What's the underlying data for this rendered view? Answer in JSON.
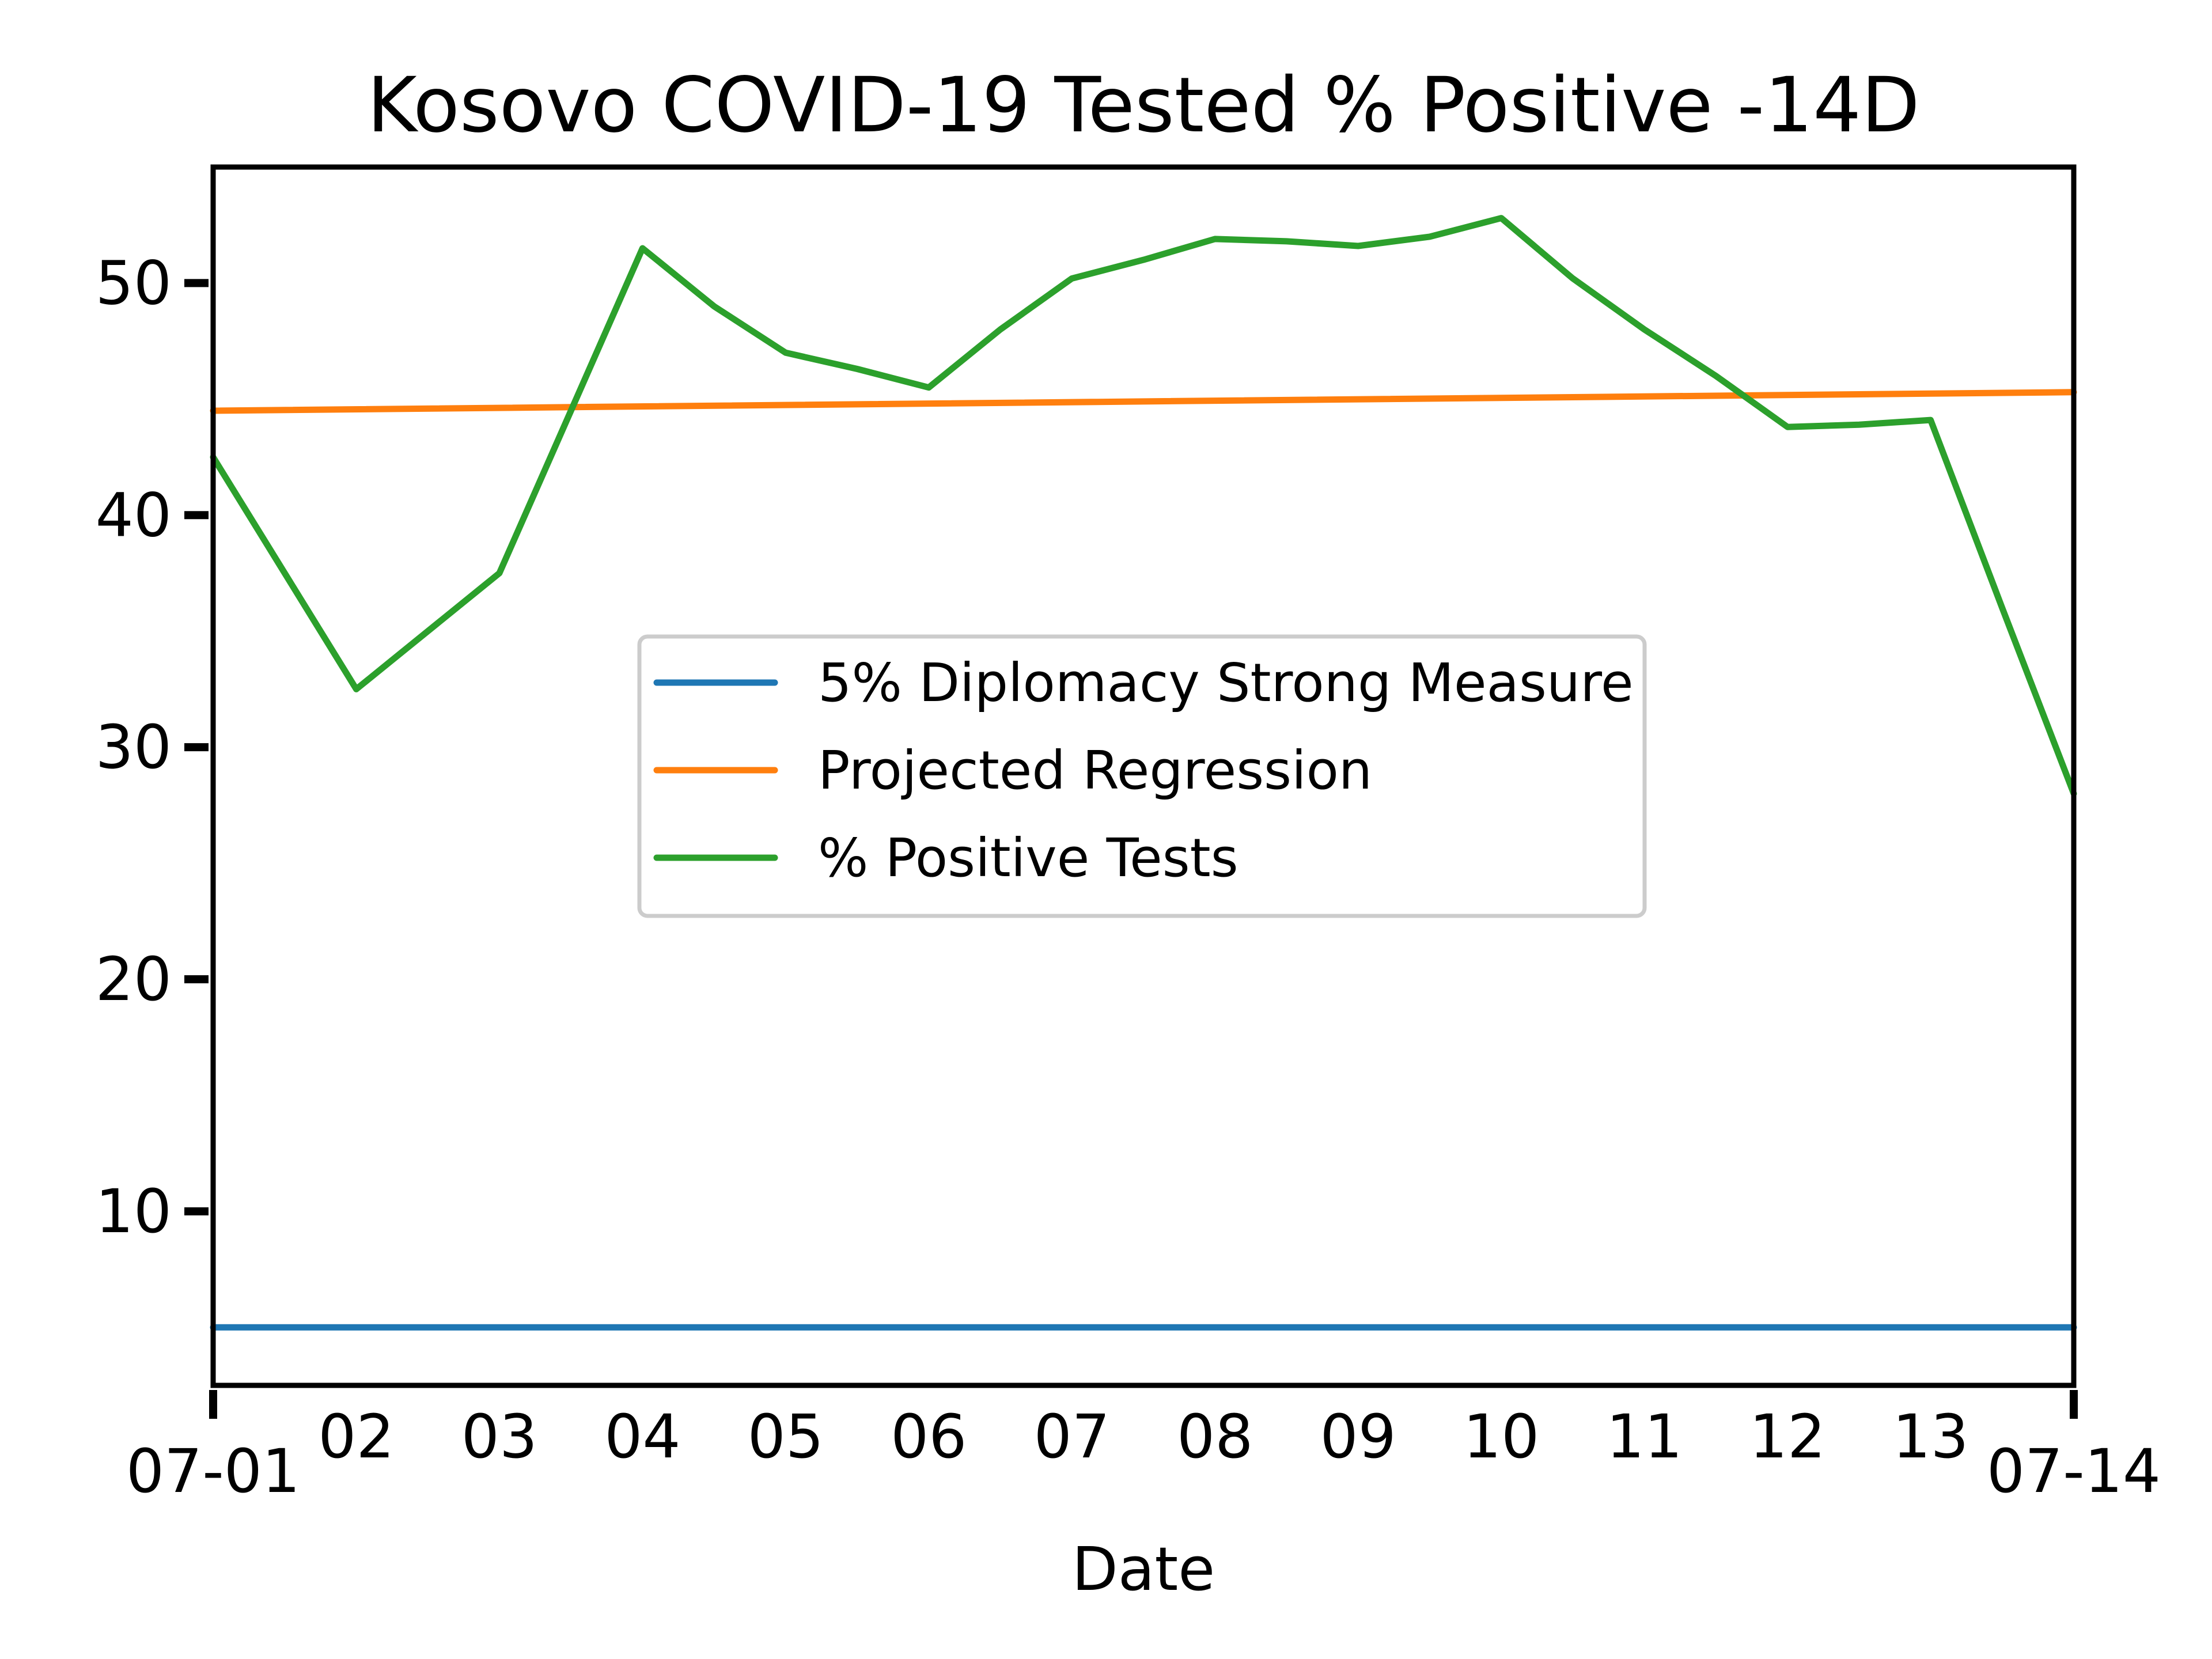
{
  "chart_data": {
    "type": "line",
    "title": "Kosovo COVID-19 Tested % Positive -14D",
    "xlabel": "Date",
    "ylabel": "",
    "x_tick_labels": [
      "07-01",
      "02",
      "03",
      "04",
      "05",
      "06",
      "07",
      "08",
      "09",
      "10",
      "11",
      "12",
      "13",
      "07-14"
    ],
    "x_ticks": [
      1,
      2,
      3,
      4,
      5,
      6,
      7,
      8,
      9,
      10,
      11,
      12,
      13,
      14
    ],
    "y_tick_labels": [
      "10",
      "20",
      "30",
      "40",
      "50"
    ],
    "y_ticks": [
      10,
      20,
      30,
      40,
      50
    ],
    "xlim": [
      1,
      14
    ],
    "ylim": [
      2.5,
      55
    ],
    "grid": false,
    "legend_position": "center",
    "series": [
      {
        "name": "5% Diplomacy Strong Measure",
        "color": "#1f77b4",
        "x": [
          1,
          14
        ],
        "y": [
          5.0,
          5.0
        ]
      },
      {
        "name": "Projected Regression",
        "color": "#ff7f0e",
        "x": [
          1,
          14
        ],
        "y": [
          44.5,
          45.3
        ]
      },
      {
        "name": "% Positive Tests",
        "color": "#2ca02c",
        "x": [
          1,
          2,
          3,
          3.5,
          4,
          4.5,
          5,
          5.5,
          6,
          6.5,
          7,
          7.5,
          8,
          8.5,
          9,
          9.5,
          10,
          10.5,
          11,
          11.5,
          12,
          12.5,
          13,
          13.5,
          14
        ],
        "y": [
          42.5,
          32.5,
          37.5,
          44.5,
          51.5,
          49,
          47,
          46.3,
          45.5,
          48,
          50.2,
          51,
          51.9,
          51.8,
          51.6,
          52,
          52.8,
          50.2,
          48,
          46,
          43.8,
          43.9,
          44.1,
          36,
          28
        ]
      }
    ]
  }
}
